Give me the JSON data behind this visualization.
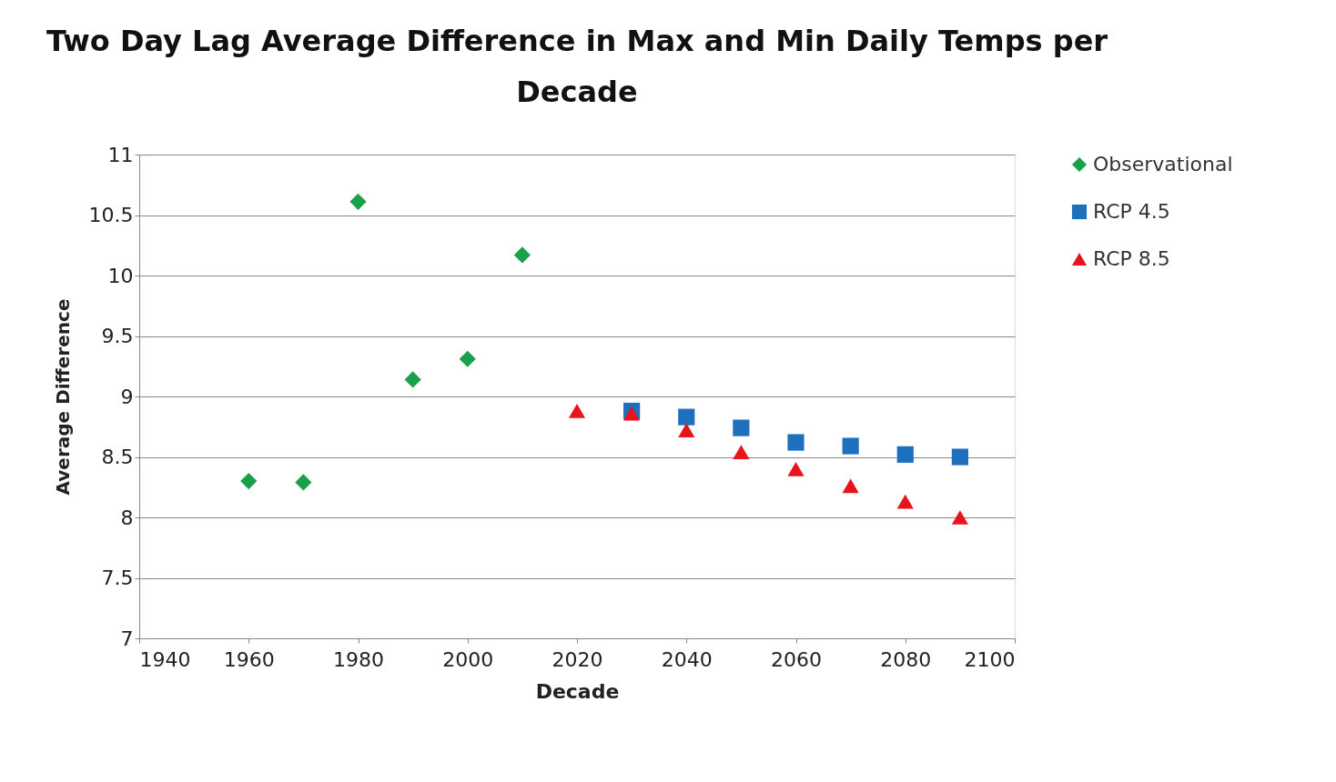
{
  "chart_data": {
    "type": "scatter",
    "title": "Two Day Lag Average Difference in Max and Min Daily Temps per Decade",
    "xlabel": "Decade",
    "ylabel": "Average Difference",
    "series": [
      {
        "name": "Observational",
        "color": "#1aa04a",
        "marker": "diamond",
        "x": [
          1960,
          1970,
          1980,
          1990,
          2000,
          2010
        ],
        "values": [
          8.3,
          8.29,
          10.61,
          9.14,
          9.31,
          10.17
        ]
      },
      {
        "name": "RCP 4.5",
        "color": "#1f6fbf",
        "marker": "square",
        "x": [
          2030,
          2040,
          2050,
          2060,
          2070,
          2080,
          2090
        ],
        "values": [
          8.88,
          8.83,
          8.74,
          8.62,
          8.59,
          8.52,
          8.5
        ]
      },
      {
        "name": "RCP 8.5",
        "color": "#e8141b",
        "marker": "triangle",
        "x": [
          2020,
          2030,
          2040,
          2050,
          2060,
          2070,
          2080,
          2090
        ],
        "values": [
          8.88,
          8.86,
          8.72,
          8.54,
          8.4,
          8.26,
          8.13,
          8.0
        ]
      }
    ],
    "xlim": [
      1940,
      2100
    ],
    "xticks": [
      1940,
      1960,
      1980,
      2000,
      2020,
      2040,
      2060,
      2080,
      2100
    ],
    "ylim": [
      7,
      11
    ],
    "yticks": [
      7,
      7.5,
      8,
      8.5,
      9,
      9.5,
      10,
      10.5,
      11
    ],
    "grid": "y",
    "legend": "right"
  }
}
